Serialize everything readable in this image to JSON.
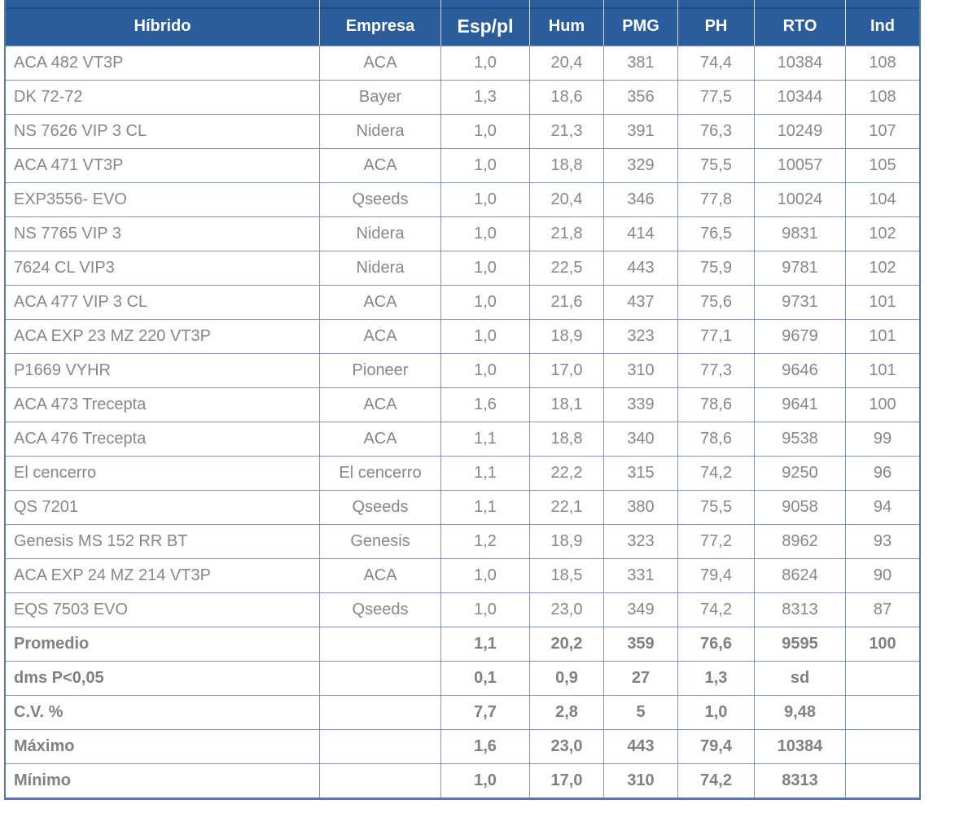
{
  "chart_data": {
    "type": "table",
    "columns": [
      "Híbrido",
      "Empresa",
      "Esp/pl",
      "Hum",
      "PMG",
      "PH",
      "RTO",
      "Ind"
    ],
    "rows": [
      [
        "ACA 482 VT3P",
        "ACA",
        "1,0",
        "20,4",
        "381",
        "74,4",
        "10384",
        "108"
      ],
      [
        "DK 72-72",
        "Bayer",
        "1,3",
        "18,6",
        "356",
        "77,5",
        "10344",
        "108"
      ],
      [
        "NS 7626 VIP 3 CL",
        "Nidera",
        "1,0",
        "21,3",
        "391",
        "76,3",
        "10249",
        "107"
      ],
      [
        "ACA 471 VT3P",
        "ACA",
        "1,0",
        "18,8",
        "329",
        "75,5",
        "10057",
        "105"
      ],
      [
        "EXP3556- EVO",
        "Qseeds",
        "1,0",
        "20,4",
        "346",
        "77,8",
        "10024",
        "104"
      ],
      [
        "NS 7765 VIP 3",
        "Nidera",
        "1,0",
        "21,8",
        "414",
        "76,5",
        "9831",
        "102"
      ],
      [
        "7624 CL VIP3",
        "Nidera",
        "1,0",
        "22,5",
        "443",
        "75,9",
        "9781",
        "102"
      ],
      [
        "ACA 477 VIP 3 CL",
        "ACA",
        "1,0",
        "21,6",
        "437",
        "75,6",
        "9731",
        "101"
      ],
      [
        "ACA EXP 23 MZ 220 VT3P",
        "ACA",
        "1,0",
        "18,9",
        "323",
        "77,1",
        "9679",
        "101"
      ],
      [
        "P1669 VYHR",
        "Pioneer",
        "1,0",
        "17,0",
        "310",
        "77,3",
        "9646",
        "101"
      ],
      [
        "ACA 473 Trecepta",
        "ACA",
        "1,6",
        "18,1",
        "339",
        "78,6",
        "9641",
        "100"
      ],
      [
        "ACA 476 Trecepta",
        "ACA",
        "1,1",
        "18,8",
        "340",
        "78,6",
        "9538",
        "99"
      ],
      [
        "El cencerro",
        "El cencerro",
        "1,1",
        "22,2",
        "315",
        "74,2",
        "9250",
        "96"
      ],
      [
        "QS 7201",
        "Qseeds",
        "1,1",
        "22,1",
        "380",
        "75,5",
        "9058",
        "94"
      ],
      [
        "Genesis MS 152 RR BT",
        "Genesis",
        "1,2",
        "18,9",
        "323",
        "77,2",
        "8962",
        "93"
      ],
      [
        "ACA EXP 24 MZ 214 VT3P",
        "ACA",
        "1,0",
        "18,5",
        "331",
        "79,4",
        "8624",
        "90"
      ],
      [
        "EQS 7503 EVO",
        "Qseeds",
        "1,0",
        "23,0",
        "349",
        "74,2",
        "8313",
        "87"
      ]
    ],
    "summary_rows": [
      [
        "Promedio",
        "",
        "1,1",
        "20,2",
        "359",
        "76,6",
        "9595",
        "100"
      ],
      [
        "dms P<0,05",
        "",
        "0,1",
        "0,9",
        "27",
        "1,3",
        "sd",
        ""
      ],
      [
        "C.V. %",
        "",
        "7,7",
        "2,8",
        "5",
        "1,0",
        "9,48",
        ""
      ],
      [
        "Máximo",
        "",
        "1,6",
        "23,0",
        "443",
        "79,4",
        "10384",
        ""
      ],
      [
        "Mínimo",
        "",
        "1,0",
        "17,0",
        "310",
        "74,2",
        "8313",
        ""
      ]
    ],
    "title": "",
    "layout_hints": {
      "header_position": "top",
      "grid": true
    }
  },
  "colors": {
    "header_bg": "#2b5d9a",
    "header_text": "#ffffff",
    "grid_line": "#8095bb",
    "outer_border": "#5b76aa",
    "body_text": "#85878a",
    "row_bg": "#ffffff"
  }
}
